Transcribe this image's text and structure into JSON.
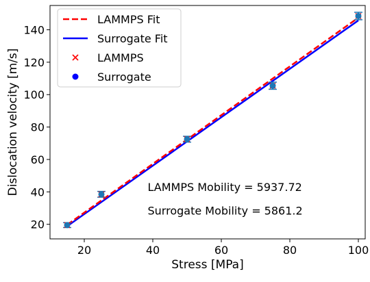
{
  "chart_data": {
    "type": "line",
    "title": "",
    "xlabel": "Stress [MPa]",
    "ylabel": "Dislocation velocity [m/s]",
    "xlim": [
      10,
      102
    ],
    "ylim": [
      11,
      155
    ],
    "xticks": [
      20,
      40,
      60,
      80,
      100
    ],
    "yticks": [
      20,
      40,
      60,
      80,
      100,
      120,
      140
    ],
    "grid": false,
    "legend_position": "top-left",
    "series": [
      {
        "name": "LAMMPS Fit",
        "kind": "line",
        "style": "dashed",
        "color": "#ff0000",
        "x": [
          15,
          100
        ],
        "y": [
          19.7,
          147.5
        ]
      },
      {
        "name": "Surrogate Fit",
        "kind": "line",
        "style": "solid",
        "color": "#0000ff",
        "x": [
          15,
          100
        ],
        "y": [
          18.8,
          145.8
        ]
      },
      {
        "name": "LAMMPS",
        "kind": "scatter",
        "marker": "x",
        "color": "#ff0000",
        "x": [
          15,
          25,
          50,
          75,
          100
        ],
        "y": [
          19.5,
          38.5,
          72.5,
          105.5,
          148.5
        ]
      },
      {
        "name": "Surrogate",
        "kind": "scatter",
        "marker": "o",
        "color": "#0000ff",
        "x": [
          15,
          25,
          50,
          75,
          100
        ],
        "y": [
          19.5,
          38.5,
          72.5,
          105.5,
          148.5
        ],
        "yerr": [
          1.5,
          1.8,
          1.8,
          2.2,
          2.3
        ]
      }
    ],
    "annotations": [
      {
        "text": "LAMMPS Mobility = 5937.72",
        "x": 38.5,
        "y": 40.5
      },
      {
        "text": "Surrogate Mobility = 5861.2",
        "x": 38.5,
        "y": 26
      }
    ]
  }
}
